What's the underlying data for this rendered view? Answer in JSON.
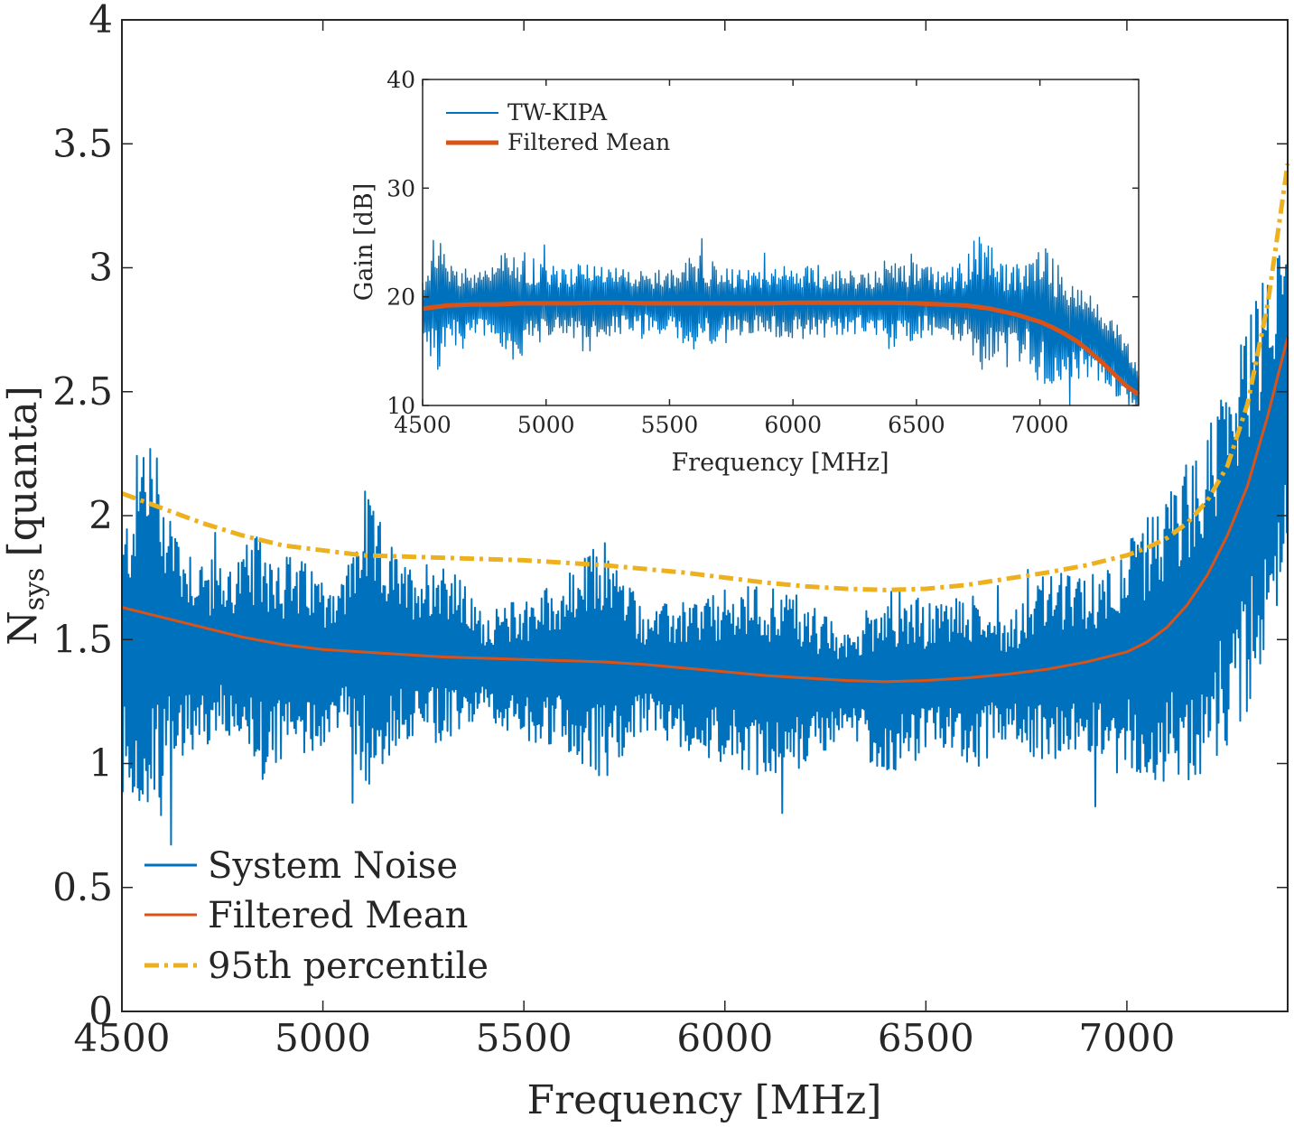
{
  "chart_data": [
    {
      "id": "main",
      "type": "line",
      "title": "",
      "xlabel": "Frequency [MHz]",
      "ylabel": "N",
      "ylabel_subscript": "sys",
      "ylabel_unit": "[quanta]",
      "xlim": [
        4500,
        7400
      ],
      "ylim": [
        0,
        4
      ],
      "xticks": [
        4500,
        5000,
        5500,
        6000,
        6500,
        7000
      ],
      "xtick_labels": [
        "4500",
        "5000",
        "5500",
        "6000",
        "6500",
        "7000"
      ],
      "yticks": [
        0,
        0.5,
        1,
        1.5,
        2,
        2.5,
        3,
        3.5,
        4
      ],
      "ytick_labels": [
        "0",
        "0.5",
        "1",
        "1.5",
        "2",
        "2.5",
        "3",
        "3.5",
        "4"
      ],
      "grid": false,
      "legend_position": "bottom-left",
      "series": [
        {
          "name": "System Noise",
          "color": "#0072BD",
          "style": "solid",
          "noise_model": true,
          "center_x": [
            4500,
            4550,
            4600,
            4700,
            4800,
            4900,
            5000,
            5100,
            5200,
            5300,
            5400,
            5500,
            5600,
            5700,
            5800,
            5900,
            6000,
            6100,
            6200,
            6300,
            6400,
            6500,
            6600,
            6700,
            6800,
            6900,
            7000,
            7100,
            7200,
            7300,
            7400
          ],
          "center_y": [
            1.45,
            1.55,
            1.5,
            1.45,
            1.45,
            1.42,
            1.42,
            1.48,
            1.45,
            1.45,
            1.4,
            1.38,
            1.4,
            1.42,
            1.38,
            1.36,
            1.35,
            1.34,
            1.33,
            1.32,
            1.33,
            1.34,
            1.35,
            1.35,
            1.38,
            1.4,
            1.44,
            1.5,
            1.65,
            2.0,
            2.5
          ],
          "envelope_x": [
            4500,
            4560,
            4650,
            4750,
            4850,
            4950,
            5050,
            5110,
            5200,
            5300,
            5400,
            5500,
            5600,
            5700,
            5800,
            5900,
            6000,
            6100,
            6200,
            6300,
            6400,
            6500,
            6600,
            6700,
            6800,
            6900,
            7000,
            7100,
            7200,
            7300,
            7400
          ],
          "envelope_amp": [
            0.45,
            0.9,
            0.45,
            0.35,
            0.5,
            0.4,
            0.3,
            0.6,
            0.35,
            0.4,
            0.2,
            0.3,
            0.35,
            0.5,
            0.25,
            0.3,
            0.35,
            0.4,
            0.35,
            0.2,
            0.4,
            0.3,
            0.35,
            0.25,
            0.4,
            0.35,
            0.45,
            0.6,
            0.7,
            0.8,
            0.7
          ]
        },
        {
          "name": "Filtered Mean",
          "color": "#D95319",
          "style": "solid",
          "x": [
            4500,
            4600,
            4700,
            4800,
            4900,
            5000,
            5100,
            5200,
            5300,
            5400,
            5500,
            5600,
            5700,
            5800,
            5900,
            6000,
            6100,
            6200,
            6300,
            6400,
            6500,
            6600,
            6700,
            6800,
            6900,
            7000,
            7050,
            7100,
            7150,
            7200,
            7250,
            7300,
            7350,
            7400
          ],
          "y": [
            1.63,
            1.59,
            1.55,
            1.51,
            1.48,
            1.46,
            1.45,
            1.44,
            1.43,
            1.425,
            1.42,
            1.415,
            1.41,
            1.4,
            1.385,
            1.37,
            1.355,
            1.345,
            1.335,
            1.33,
            1.335,
            1.345,
            1.36,
            1.38,
            1.41,
            1.45,
            1.49,
            1.55,
            1.64,
            1.76,
            1.92,
            2.12,
            2.4,
            2.72
          ]
        },
        {
          "name": "95th percentile",
          "color": "#EDB120",
          "style": "dash-dot",
          "x": [
            4500,
            4600,
            4700,
            4800,
            4900,
            5000,
            5100,
            5200,
            5300,
            5400,
            5500,
            5600,
            5700,
            5800,
            5900,
            6000,
            6100,
            6200,
            6300,
            6400,
            6500,
            6600,
            6700,
            6800,
            6900,
            7000,
            7050,
            7100,
            7150,
            7200,
            7250,
            7300,
            7350,
            7400
          ],
          "y": [
            2.09,
            2.03,
            1.97,
            1.92,
            1.88,
            1.86,
            1.84,
            1.835,
            1.83,
            1.825,
            1.82,
            1.81,
            1.8,
            1.785,
            1.77,
            1.75,
            1.73,
            1.715,
            1.705,
            1.7,
            1.705,
            1.72,
            1.745,
            1.77,
            1.8,
            1.84,
            1.87,
            1.91,
            1.97,
            2.06,
            2.2,
            2.45,
            2.85,
            3.42
          ]
        }
      ]
    },
    {
      "id": "inset",
      "type": "line",
      "title": "",
      "xlabel": "Frequency [MHz]",
      "ylabel": "Gain [dB]",
      "xlim": [
        4500,
        7400
      ],
      "ylim": [
        10,
        40
      ],
      "xticks": [
        4500,
        5000,
        5500,
        6000,
        6500,
        7000
      ],
      "xtick_labels": [
        "4500",
        "5000",
        "5500",
        "6000",
        "6500",
        "7000"
      ],
      "yticks": [
        10,
        20,
        30,
        40
      ],
      "ytick_labels": [
        "10",
        "20",
        "30",
        "40"
      ],
      "grid": false,
      "legend_position": "top-left",
      "series": [
        {
          "name": "TW-KIPA",
          "color": "#0072BD",
          "style": "solid",
          "noise_model": true,
          "center_x": [
            4500,
            4600,
            4800,
            5000,
            5200,
            5400,
            5600,
            5800,
            6000,
            6200,
            6400,
            6600,
            6800,
            7000,
            7100,
            7200,
            7300,
            7400
          ],
          "center_y": [
            19,
            19.5,
            19.4,
            19.5,
            19.5,
            19.5,
            19.5,
            19.5,
            19.5,
            19.5,
            19.5,
            19.5,
            19.2,
            18.5,
            17.5,
            16.5,
            14.5,
            11.5
          ],
          "envelope_x": [
            4500,
            4550,
            4650,
            4750,
            4870,
            5000,
            5100,
            5150,
            5300,
            5400,
            5500,
            5600,
            5700,
            5800,
            5900,
            6000,
            6100,
            6200,
            6300,
            6400,
            6500,
            6600,
            6700,
            6750,
            6850,
            6950,
            7010,
            7100,
            7200,
            7300,
            7400
          ],
          "envelope_amp": [
            3,
            6.5,
            3.5,
            3,
            5.5,
            3.5,
            3,
            5,
            3,
            3,
            3,
            4.5,
            3.5,
            3,
            3,
            3.5,
            3.5,
            3,
            3,
            4.5,
            3.5,
            3,
            4,
            7,
            4,
            4.5,
            7,
            5,
            4,
            3.5,
            3
          ]
        },
        {
          "name": "Filtered Mean",
          "color": "#D95319",
          "style": "solid",
          "x": [
            4500,
            4600,
            4700,
            4800,
            4900,
            5000,
            5100,
            5200,
            5300,
            5400,
            5500,
            5600,
            5700,
            5800,
            5900,
            6000,
            6100,
            6200,
            6300,
            6400,
            6500,
            6600,
            6700,
            6800,
            6900,
            7000,
            7050,
            7100,
            7150,
            7200,
            7250,
            7300,
            7350,
            7400
          ],
          "y": [
            18.9,
            19.2,
            19.3,
            19.3,
            19.4,
            19.4,
            19.4,
            19.45,
            19.45,
            19.4,
            19.4,
            19.4,
            19.4,
            19.4,
            19.4,
            19.45,
            19.45,
            19.45,
            19.45,
            19.45,
            19.4,
            19.3,
            19.2,
            18.9,
            18.4,
            17.7,
            17.2,
            16.6,
            15.9,
            15.0,
            14.0,
            12.9,
            11.8,
            11.0
          ]
        }
      ]
    }
  ]
}
